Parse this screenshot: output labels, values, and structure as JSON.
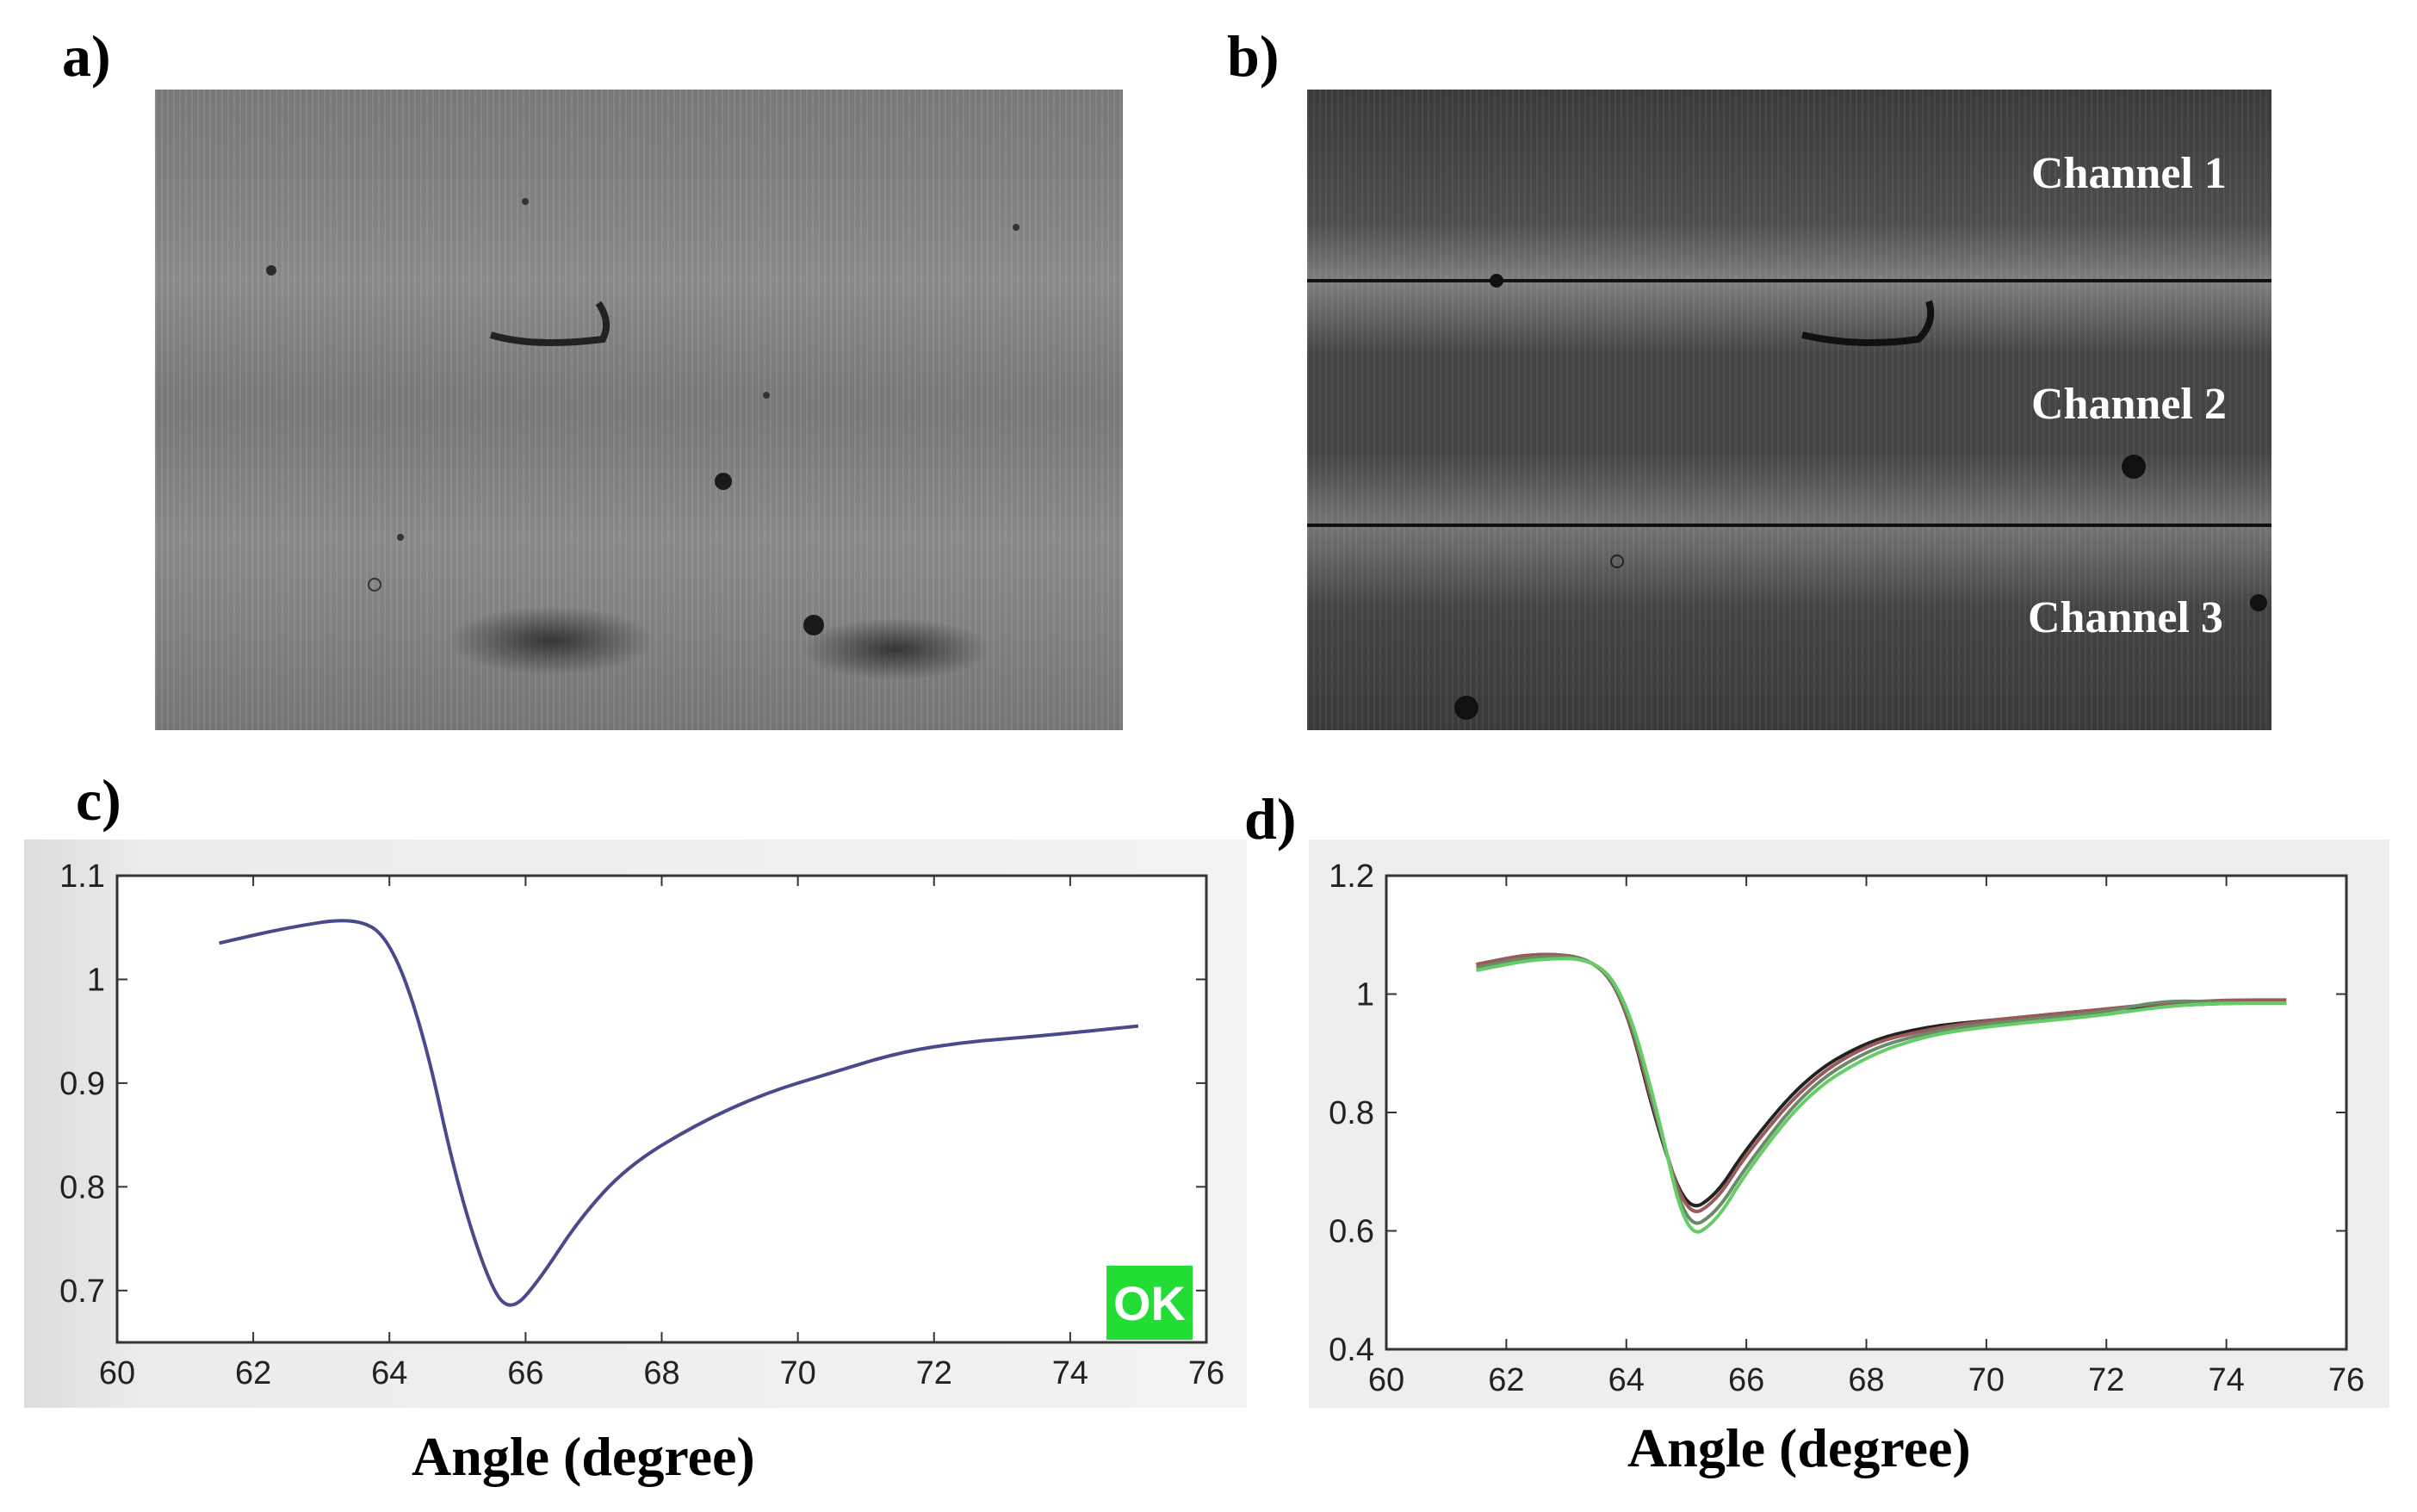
{
  "panel_labels": {
    "a": "a)",
    "b": "b)",
    "c": "c)",
    "d": "d)"
  },
  "channels": [
    "Channel 1",
    "Channel 2",
    "Channel 3"
  ],
  "chart_data": [
    {
      "type": "line",
      "panel": "c",
      "title": "",
      "xlabel": "Angle (degree)",
      "ylabel": "",
      "xlim": [
        60,
        76
      ],
      "ylim": [
        0.65,
        1.1
      ],
      "xticks": [
        60,
        62,
        64,
        66,
        68,
        70,
        72,
        74,
        76
      ],
      "yticks": [
        0.7,
        0.8,
        0.9,
        1,
        1.1
      ],
      "grid": false,
      "badge": "OK",
      "series": [
        {
          "color": "#4a4a8a",
          "x": [
            61.5,
            62.5,
            63.5,
            64.0,
            64.5,
            65.0,
            65.5,
            65.8,
            66.2,
            66.8,
            67.5,
            68.5,
            69.5,
            70.5,
            71.5,
            72.5,
            73.5,
            75.0
          ],
          "y": [
            1.035,
            1.05,
            1.06,
            1.04,
            0.95,
            0.8,
            0.7,
            0.68,
            0.71,
            0.77,
            0.82,
            0.86,
            0.89,
            0.91,
            0.93,
            0.94,
            0.945,
            0.955
          ]
        }
      ]
    },
    {
      "type": "line",
      "panel": "d",
      "title": "",
      "xlabel": "Angle (degree)",
      "ylabel": "",
      "xlim": [
        60,
        76
      ],
      "ylim": [
        0.4,
        1.2
      ],
      "xticks": [
        60,
        62,
        64,
        66,
        68,
        70,
        72,
        74,
        76
      ],
      "yticks": [
        0.4,
        0.6,
        0.8,
        1,
        1.2
      ],
      "grid": false,
      "series": [
        {
          "color": "#222222",
          "x": [
            61.5,
            62.5,
            63.5,
            64.0,
            64.5,
            65.0,
            65.5,
            66.0,
            67.0,
            68.0,
            69.0,
            70.0,
            71.0,
            72.0,
            73.0,
            74.0,
            75.0
          ],
          "y": [
            1.05,
            1.07,
            1.06,
            0.98,
            0.78,
            0.63,
            0.66,
            0.74,
            0.86,
            0.92,
            0.945,
            0.955,
            0.965,
            0.975,
            0.98,
            0.985,
            0.985
          ]
        },
        {
          "color": "#9a5a5a",
          "x": [
            61.5,
            62.5,
            63.5,
            64.0,
            64.5,
            65.0,
            65.5,
            66.0,
            67.0,
            68.0,
            69.0,
            70.0,
            71.0,
            72.0,
            73.0,
            74.0,
            75.0
          ],
          "y": [
            1.05,
            1.07,
            1.06,
            0.98,
            0.79,
            0.62,
            0.65,
            0.73,
            0.85,
            0.915,
            0.94,
            0.955,
            0.965,
            0.975,
            0.985,
            0.99,
            0.99
          ]
        },
        {
          "color": "#6a8a6a",
          "x": [
            61.5,
            62.5,
            63.5,
            64.0,
            64.5,
            65.0,
            65.5,
            66.0,
            67.0,
            68.0,
            69.0,
            70.0,
            71.0,
            72.0,
            73.0,
            74.0,
            75.0
          ],
          "y": [
            1.045,
            1.065,
            1.06,
            0.985,
            0.8,
            0.6,
            0.63,
            0.71,
            0.84,
            0.905,
            0.935,
            0.95,
            0.96,
            0.97,
            0.99,
            0.985,
            0.985
          ]
        },
        {
          "color": "#66cc66",
          "x": [
            61.5,
            62.5,
            63.5,
            64.0,
            64.5,
            65.0,
            65.5,
            66.0,
            67.0,
            68.0,
            69.0,
            70.0,
            71.0,
            72.0,
            73.0,
            74.0,
            75.0
          ],
          "y": [
            1.04,
            1.06,
            1.06,
            0.99,
            0.81,
            0.585,
            0.615,
            0.7,
            0.83,
            0.895,
            0.93,
            0.945,
            0.955,
            0.965,
            0.98,
            0.985,
            0.985
          ]
        }
      ]
    }
  ]
}
